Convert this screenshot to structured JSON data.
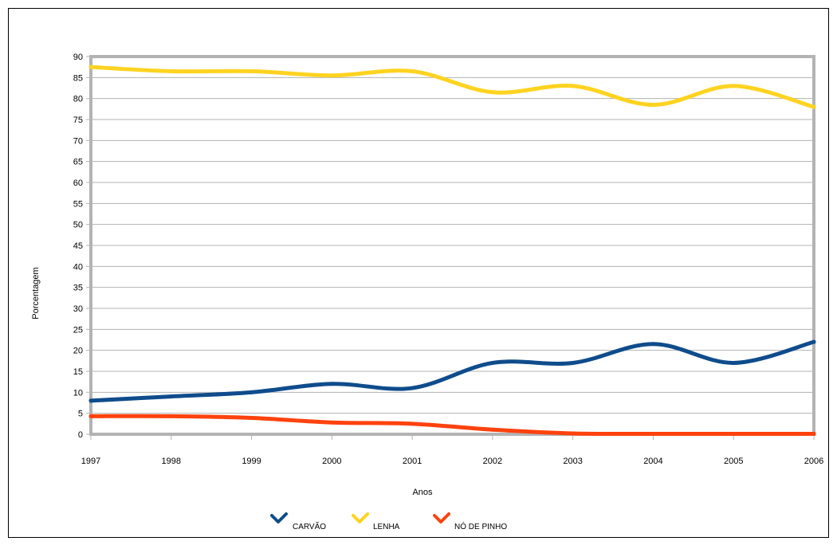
{
  "chart_data": {
    "type": "line",
    "title": "",
    "xlabel": "Anos",
    "ylabel": "Porcentagem",
    "x": [
      "1997",
      "1998",
      "1999",
      "2000",
      "2001",
      "2002",
      "2003",
      "2004",
      "2005",
      "2006"
    ],
    "ylim": [
      0,
      90
    ],
    "yticks": [
      0,
      5,
      10,
      15,
      20,
      25,
      30,
      35,
      40,
      45,
      50,
      55,
      60,
      65,
      70,
      75,
      80,
      85,
      90
    ],
    "grid": true,
    "legend_position": "bottom",
    "series": [
      {
        "name": "CARVÃO",
        "color": "#0f4c8c",
        "values": [
          8,
          9,
          10,
          12,
          11,
          17,
          17,
          21.5,
          17,
          22
        ]
      },
      {
        "name": "LENHA",
        "color": "#ffd320",
        "values": [
          87.5,
          86.5,
          86.5,
          85.5,
          86.5,
          81.5,
          83,
          78.5,
          83,
          78
        ]
      },
      {
        "name": "NÓ DE PINHO",
        "color": "#ff420e",
        "values": [
          4.3,
          4.3,
          3.9,
          2.8,
          2.5,
          1.1,
          0.2,
          0.1,
          0.1,
          0.1
        ]
      }
    ]
  }
}
